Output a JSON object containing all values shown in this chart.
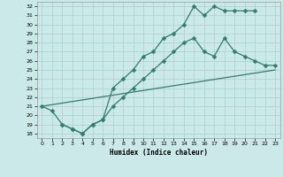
{
  "xlabel": "Humidex (Indice chaleur)",
  "background_color": "#cce9e9",
  "grid_color": "#aacfcf",
  "line_color": "#2e7d6e",
  "xlim": [
    -0.5,
    23.5
  ],
  "ylim": [
    17.5,
    32.5
  ],
  "xticks": [
    0,
    1,
    2,
    3,
    4,
    5,
    6,
    7,
    8,
    9,
    10,
    11,
    12,
    13,
    14,
    15,
    16,
    17,
    18,
    19,
    20,
    21,
    22,
    23
  ],
  "yticks": [
    18,
    19,
    20,
    21,
    22,
    23,
    24,
    25,
    26,
    27,
    28,
    29,
    30,
    31,
    32
  ],
  "line1_x": [
    0,
    1,
    2,
    3,
    4,
    5,
    6,
    7,
    8,
    9,
    10,
    11,
    12,
    13,
    14,
    15,
    16,
    17,
    18,
    19,
    20,
    21
  ],
  "line1_y": [
    21,
    20.5,
    19,
    18.5,
    18,
    19,
    19.5,
    23,
    24,
    25,
    26.5,
    27,
    28.5,
    29,
    30,
    32,
    31,
    32,
    31.5,
    31.5,
    31.5,
    31.5
  ],
  "line2_x": [
    0,
    23
  ],
  "line2_y": [
    21,
    25
  ],
  "line3_x": [
    2,
    3,
    4,
    5,
    6,
    7,
    8,
    9,
    10,
    11,
    12,
    13,
    14,
    15,
    16,
    17,
    18,
    19,
    20,
    21,
    22,
    23
  ],
  "line3_y": [
    19,
    18.5,
    18,
    19,
    19.5,
    21,
    22,
    23,
    24,
    25,
    26,
    27,
    28,
    28.5,
    27,
    26.5,
    28.5,
    27,
    26.5,
    26,
    25.5,
    25.5
  ]
}
